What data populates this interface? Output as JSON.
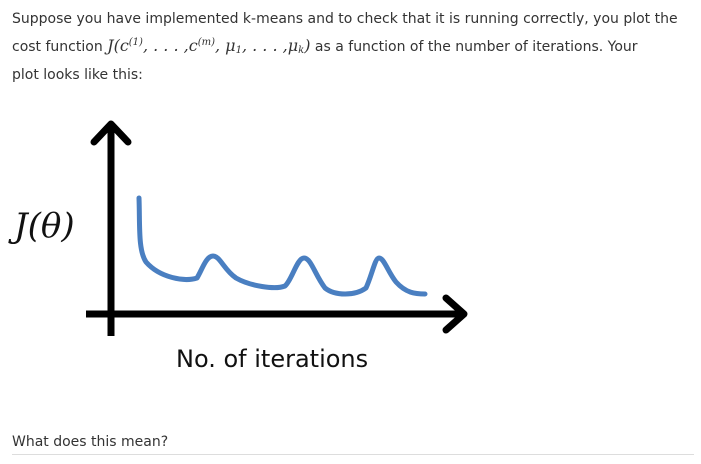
{
  "question": {
    "line1": "Suppose you have implemented k-means and to check that it is running correctly, you plot the",
    "line2_prefix": "cost function",
    "line2_suffix": "as a function of the number of iterations. Your",
    "line3": "plot looks like this:",
    "formula": {
      "J": "J",
      "open": "(",
      "c": "c",
      "sup1": "(1)",
      "dots1": ", . . . ,",
      "supm": "(m)",
      "mu": "μ",
      "sub1": "1",
      "dots2": ", . . . ,",
      "subk": "k",
      "close": ")"
    }
  },
  "figure": {
    "ylabel": "J(θ)",
    "xlabel": "No. of iterations",
    "curve_color": "#4a7fc1",
    "axis_color": "#000000"
  },
  "prompt": "What does this mean?"
}
